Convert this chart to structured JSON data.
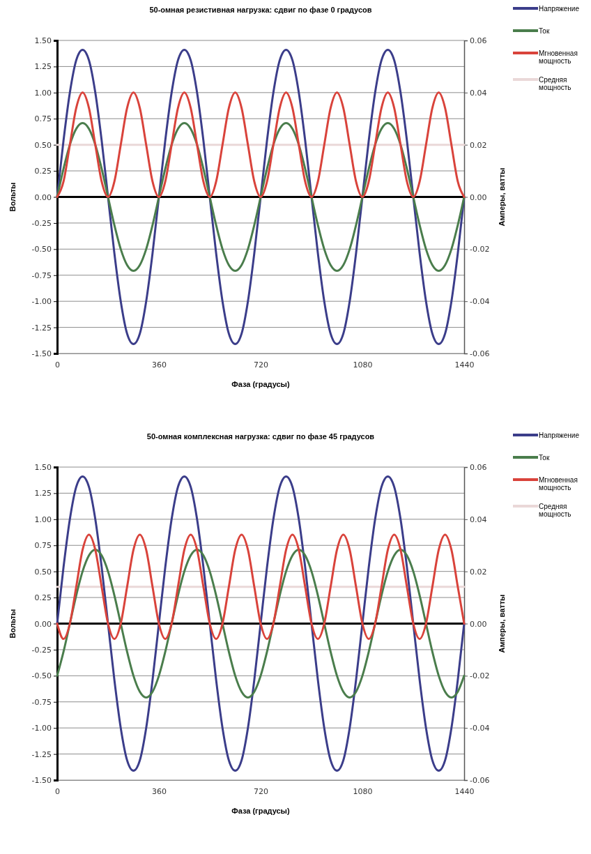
{
  "chart_data": [
    {
      "type": "line",
      "title": "50-омная резистивная нагрузка: сдвиг по фазе 0 градусов",
      "xlabel": "Фаза (градусы)",
      "ylabel": "Вольты",
      "y2label": "Амперы, ватты",
      "x": [
        0,
        22.5,
        45,
        67.5,
        90,
        112.5,
        135,
        157.5,
        180,
        202.5,
        225,
        247.5,
        270,
        292.5,
        315,
        337.5,
        360,
        382.5,
        405,
        427.5,
        450,
        472.5,
        495,
        517.5,
        540,
        562.5,
        585,
        607.5,
        630,
        652.5,
        675,
        697.5,
        720,
        742.5,
        765,
        787.5,
        810,
        832.5,
        855,
        877.5,
        900,
        922.5,
        945,
        967.5,
        990,
        1012.5,
        1035,
        1057.5,
        1080,
        1102.5,
        1125,
        1147.5,
        1170,
        1192.5,
        1215,
        1237.5,
        1260,
        1282.5,
        1305,
        1327.5,
        1350,
        1372.5,
        1395,
        1417.5,
        1440
      ],
      "xlim": [
        0,
        1440
      ],
      "xticks": [
        0,
        360,
        720,
        1080,
        1440
      ],
      "ylim": [
        -1.5,
        1.5
      ],
      "yticks": [
        {
          "value": -1.5,
          "label": "-1.50"
        },
        {
          "value": -1.25,
          "label": "-1.25"
        },
        {
          "value": -1,
          "label": "-1.00"
        },
        {
          "value": -0.75,
          "label": "-0.75"
        },
        {
          "value": -0.5,
          "label": "-0.50"
        },
        {
          "value": -0.25,
          "label": "-0.25"
        },
        {
          "value": 0,
          "label": "0.00"
        },
        {
          "value": 0.25,
          "label": "0.25"
        },
        {
          "value": 0.5,
          "label": "0.50"
        },
        {
          "value": 0.75,
          "label": "0.75"
        },
        {
          "value": 1,
          "label": "1.00"
        },
        {
          "value": 1.25,
          "label": "1.25"
        },
        {
          "value": 1.5,
          "label": "1.50"
        }
      ],
      "y2lim": [
        -0.06,
        0.06
      ],
      "y2ticks": [
        {
          "value": -0.06,
          "label": "-0.06"
        },
        {
          "value": -0.04,
          "label": "-0.04"
        },
        {
          "value": -0.02,
          "label": "-0.02"
        },
        {
          "value": 0,
          "label": "0.00"
        },
        {
          "value": 0.02,
          "label": "0.02"
        },
        {
          "value": 0.04,
          "label": "0.04"
        },
        {
          "value": 0.06,
          "label": "0.06"
        }
      ],
      "grid": "y",
      "legend": "right",
      "marker": "none",
      "line_style": "solid",
      "ref_lines": [
        {
          "axis": "y",
          "value": 0,
          "color": "#000000"
        }
      ],
      "series": [
        {
          "name": "Напряжение",
          "color": "#3b3d8a",
          "values": [
            0,
            0.54,
            1,
            1.31,
            1.41,
            1.31,
            1,
            0.54,
            0,
            -0.54,
            -1,
            -1.31,
            -1.41,
            -1.31,
            -1,
            -0.54,
            0,
            0.54,
            1,
            1.31,
            1.41,
            1.31,
            1,
            0.54,
            0,
            -0.54,
            -1,
            -1.31,
            -1.41,
            -1.31,
            -1,
            -0.54,
            0,
            0.54,
            1,
            1.31,
            1.41,
            1.31,
            1,
            0.54,
            0,
            -0.54,
            -1,
            -1.31,
            -1.41,
            -1.31,
            -1,
            -0.54,
            0,
            0.54,
            1,
            1.31,
            1.41,
            1.31,
            1,
            0.54,
            0,
            -0.54,
            -1,
            -1.31,
            -1.41,
            -1.31,
            -1,
            -0.54,
            0
          ]
        },
        {
          "name": "Ток",
          "color": "#4a7d4c",
          "axis": "y2",
          "values": [
            0,
            0.0108,
            0.02,
            0.0261,
            0.0283,
            0.0261,
            0.02,
            0.0108,
            0,
            -0.0108,
            -0.02,
            -0.0261,
            -0.0283,
            -0.0261,
            -0.02,
            -0.0108,
            0,
            0.0108,
            0.02,
            0.0261,
            0.0283,
            0.0261,
            0.02,
            0.0108,
            0,
            -0.0108,
            -0.02,
            -0.0261,
            -0.0283,
            -0.0261,
            -0.02,
            -0.0108,
            0,
            0.0108,
            0.02,
            0.0261,
            0.0283,
            0.0261,
            0.02,
            0.0108,
            0,
            -0.0108,
            -0.02,
            -0.0261,
            -0.0283,
            -0.0261,
            -0.02,
            -0.0108,
            0,
            0.0108,
            0.02,
            0.0261,
            0.0283,
            0.0261,
            0.02,
            0.0108,
            0,
            -0.0108,
            -0.02,
            -0.0261,
            -0.0283,
            -0.0261,
            -0.02,
            -0.0108,
            0
          ]
        },
        {
          "name": "Мгновенная мощность",
          "color": "#d9433b",
          "axis": "y2",
          "values": [
            0,
            0.0059,
            0.02,
            0.0341,
            0.04,
            0.0341,
            0.02,
            0.0059,
            0,
            0.0059,
            0.02,
            0.0341,
            0.04,
            0.0341,
            0.02,
            0.0059,
            0,
            0.0059,
            0.02,
            0.0341,
            0.04,
            0.0341,
            0.02,
            0.0059,
            0,
            0.0059,
            0.02,
            0.0341,
            0.04,
            0.0341,
            0.02,
            0.0059,
            0,
            0.0059,
            0.02,
            0.0341,
            0.04,
            0.0341,
            0.02,
            0.0059,
            0,
            0.0059,
            0.02,
            0.0341,
            0.04,
            0.0341,
            0.02,
            0.0059,
            0,
            0.0059,
            0.02,
            0.0341,
            0.04,
            0.0341,
            0.02,
            0.0059,
            0,
            0.0059,
            0.02,
            0.0341,
            0.04,
            0.0341,
            0.02,
            0.0059,
            0
          ]
        },
        {
          "name": "Средняя мощность",
          "color": "#ead8d8",
          "axis": "y2",
          "values": [
            0.02,
            0.02,
            0.02,
            0.02,
            0.02,
            0.02,
            0.02,
            0.02,
            0.02,
            0.02,
            0.02,
            0.02,
            0.02,
            0.02,
            0.02,
            0.02,
            0.02,
            0.02,
            0.02,
            0.02,
            0.02,
            0.02,
            0.02,
            0.02,
            0.02,
            0.02,
            0.02,
            0.02,
            0.02,
            0.02,
            0.02,
            0.02,
            0.02,
            0.02,
            0.02,
            0.02,
            0.02,
            0.02,
            0.02,
            0.02,
            0.02,
            0.02,
            0.02,
            0.02,
            0.02,
            0.02,
            0.02,
            0.02,
            0.02,
            0.02,
            0.02,
            0.02,
            0.02,
            0.02,
            0.02,
            0.02,
            0.02,
            0.02,
            0.02,
            0.02,
            0.02,
            0.02,
            0.02,
            0.02,
            0.02
          ]
        }
      ]
    },
    {
      "type": "line",
      "title": "50-омная комплексная нагрузка: сдвиг по фазе 45 градусов",
      "xlabel": "Фаза (градусы)",
      "ylabel": "Вольты",
      "y2label": "Амперы, ватты",
      "x": [
        0,
        22.5,
        45,
        67.5,
        90,
        112.5,
        135,
        157.5,
        180,
        202.5,
        225,
        247.5,
        270,
        292.5,
        315,
        337.5,
        360,
        382.5,
        405,
        427.5,
        450,
        472.5,
        495,
        517.5,
        540,
        562.5,
        585,
        607.5,
        630,
        652.5,
        675,
        697.5,
        720,
        742.5,
        765,
        787.5,
        810,
        832.5,
        855,
        877.5,
        900,
        922.5,
        945,
        967.5,
        990,
        1012.5,
        1035,
        1057.5,
        1080,
        1102.5,
        1125,
        1147.5,
        1170,
        1192.5,
        1215,
        1237.5,
        1260,
        1282.5,
        1305,
        1327.5,
        1350,
        1372.5,
        1395,
        1417.5,
        1440
      ],
      "xlim": [
        0,
        1440
      ],
      "xticks": [
        0,
        360,
        720,
        1080,
        1440
      ],
      "ylim": [
        -1.5,
        1.5
      ],
      "yticks": [
        {
          "value": -1.5,
          "label": "-1.50"
        },
        {
          "value": -1.25,
          "label": "-1.25"
        },
        {
          "value": -1,
          "label": "-1.00"
        },
        {
          "value": -0.75,
          "label": "-0.75"
        },
        {
          "value": -0.5,
          "label": "-0.50"
        },
        {
          "value": -0.25,
          "label": "-0.25"
        },
        {
          "value": 0,
          "label": "0.00"
        },
        {
          "value": 0.25,
          "label": "0.25"
        },
        {
          "value": 0.5,
          "label": "0.50"
        },
        {
          "value": 0.75,
          "label": "0.75"
        },
        {
          "value": 1,
          "label": "1.00"
        },
        {
          "value": 1.25,
          "label": "1.25"
        },
        {
          "value": 1.5,
          "label": "1.50"
        }
      ],
      "y2lim": [
        -0.06,
        0.06
      ],
      "y2ticks": [
        {
          "value": -0.06,
          "label": "-0.06"
        },
        {
          "value": -0.04,
          "label": "-0.04"
        },
        {
          "value": -0.02,
          "label": "-0.02"
        },
        {
          "value": 0,
          "label": "0.00"
        },
        {
          "value": 0.02,
          "label": "0.02"
        },
        {
          "value": 0.04,
          "label": "0.04"
        },
        {
          "value": 0.06,
          "label": "0.06"
        }
      ],
      "grid": "y",
      "legend": "right",
      "marker": "none",
      "line_style": "solid",
      "ref_lines": [
        {
          "axis": "y",
          "value": 0,
          "color": "#000000"
        }
      ],
      "series": [
        {
          "name": "Напряжение",
          "color": "#3b3d8a",
          "values": [
            0,
            0.54,
            1,
            1.31,
            1.41,
            1.31,
            1,
            0.54,
            0,
            -0.54,
            -1,
            -1.31,
            -1.41,
            -1.31,
            -1,
            -0.54,
            0,
            0.54,
            1,
            1.31,
            1.41,
            1.31,
            1,
            0.54,
            0,
            -0.54,
            -1,
            -1.31,
            -1.41,
            -1.31,
            -1,
            -0.54,
            0,
            0.54,
            1,
            1.31,
            1.41,
            1.31,
            1,
            0.54,
            0,
            -0.54,
            -1,
            -1.31,
            -1.41,
            -1.31,
            -1,
            -0.54,
            0,
            0.54,
            1,
            1.31,
            1.41,
            1.31,
            1,
            0.54,
            0,
            -0.54,
            -1,
            -1.31,
            -1.41,
            -1.31,
            -1,
            -0.54,
            0
          ]
        },
        {
          "name": "Ток",
          "color": "#4a7d4c",
          "axis": "y2",
          "values": [
            -0.02,
            -0.0108,
            0,
            0.0108,
            0.02,
            0.0261,
            0.0283,
            0.0261,
            0.02,
            0.0108,
            0,
            -0.0108,
            -0.02,
            -0.0261,
            -0.0283,
            -0.0261,
            -0.02,
            -0.0108,
            0,
            0.0108,
            0.02,
            0.0261,
            0.0283,
            0.0261,
            0.02,
            0.0108,
            0,
            -0.0108,
            -0.02,
            -0.0261,
            -0.0283,
            -0.0261,
            -0.02,
            -0.0108,
            0,
            0.0108,
            0.02,
            0.0261,
            0.0283,
            0.0261,
            0.02,
            0.0108,
            0,
            -0.0108,
            -0.02,
            -0.0261,
            -0.0283,
            -0.0261,
            -0.02,
            -0.0108,
            0,
            0.0108,
            0.02,
            0.0261,
            0.0283,
            0.0261,
            0.02,
            0.0108,
            0,
            -0.0108,
            -0.02,
            -0.0261,
            -0.0283,
            -0.0261,
            -0.02
          ]
        },
        {
          "name": "Мгновенная мощность",
          "color": "#d9433b",
          "axis": "y2",
          "values": [
            0,
            -0.0059,
            0,
            0.0141,
            0.0283,
            0.0341,
            0.0283,
            0.0141,
            0,
            -0.0059,
            0,
            0.0141,
            0.0283,
            0.0341,
            0.0283,
            0.0141,
            0,
            -0.0059,
            0,
            0.0141,
            0.0283,
            0.0341,
            0.0283,
            0.0141,
            0,
            -0.0059,
            0,
            0.0141,
            0.0283,
            0.0341,
            0.0283,
            0.0141,
            0,
            -0.0059,
            0,
            0.0141,
            0.0283,
            0.0341,
            0.0283,
            0.0141,
            0,
            -0.0059,
            0,
            0.0141,
            0.0283,
            0.0341,
            0.0283,
            0.0141,
            0,
            -0.0059,
            0,
            0.0141,
            0.0283,
            0.0341,
            0.0283,
            0.0141,
            0,
            -0.0059,
            0,
            0.0141,
            0.0283,
            0.0341,
            0.0283,
            0.0141,
            0
          ]
        },
        {
          "name": "Средняя мощность",
          "color": "#ead8d8",
          "axis": "y2",
          "values": [
            0.0141,
            0.0141,
            0.0141,
            0.0141,
            0.0141,
            0.0141,
            0.0141,
            0.0141,
            0.0141,
            0.0141,
            0.0141,
            0.0141,
            0.0141,
            0.0141,
            0.0141,
            0.0141,
            0.0141,
            0.0141,
            0.0141,
            0.0141,
            0.0141,
            0.0141,
            0.0141,
            0.0141,
            0.0141,
            0.0141,
            0.0141,
            0.0141,
            0.0141,
            0.0141,
            0.0141,
            0.0141,
            0.0141,
            0.0141,
            0.0141,
            0.0141,
            0.0141,
            0.0141,
            0.0141,
            0.0141,
            0.0141,
            0.0141,
            0.0141,
            0.0141,
            0.0141,
            0.0141,
            0.0141,
            0.0141,
            0.0141,
            0.0141,
            0.0141,
            0.0141,
            0.0141,
            0.0141,
            0.0141,
            0.0141,
            0.0141,
            0.0141,
            0.0141,
            0.0141,
            0.0141,
            0.0141,
            0.0141,
            0.0141,
            0.0141
          ]
        }
      ]
    }
  ]
}
